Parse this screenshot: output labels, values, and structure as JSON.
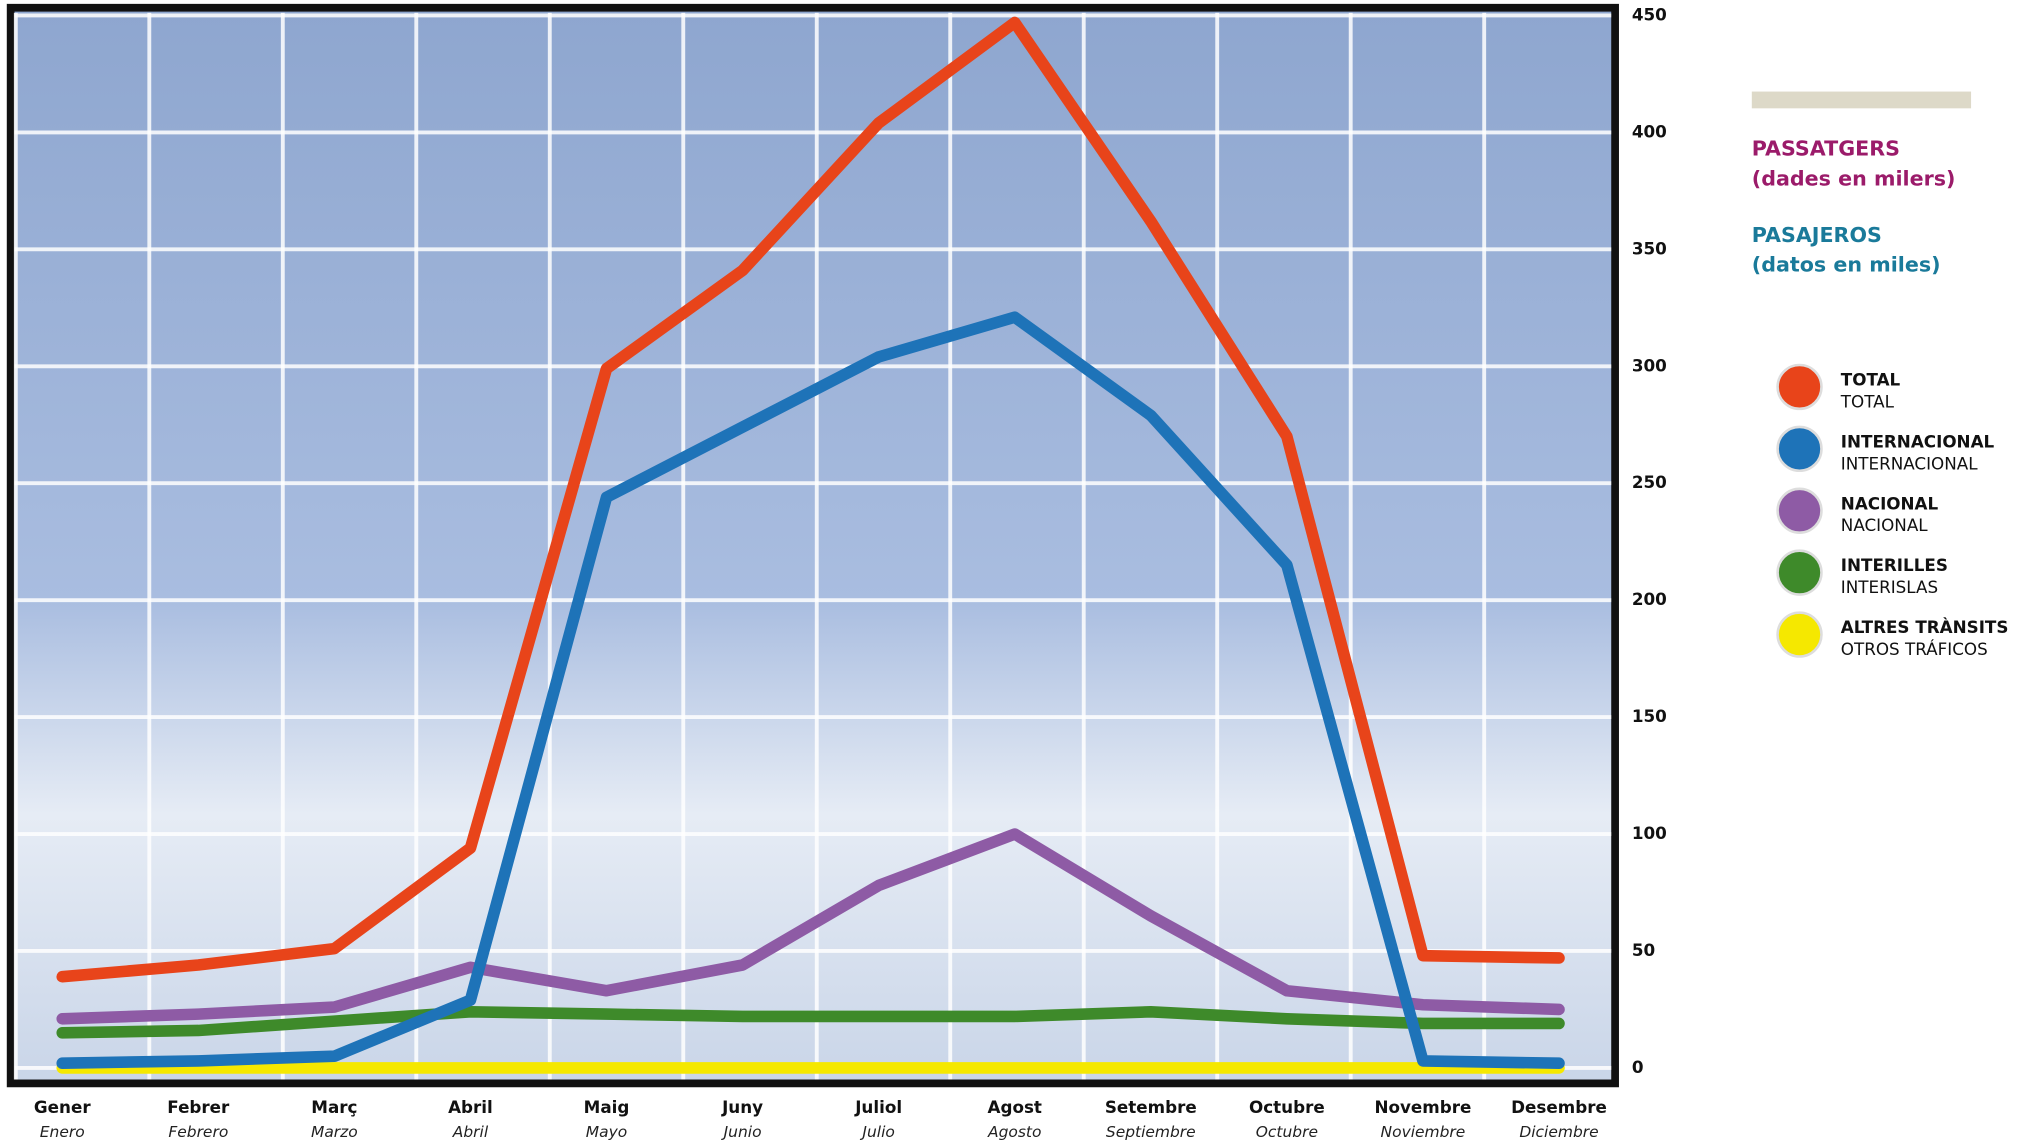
{
  "chart_data": {
    "type": "line",
    "headings": [
      {
        "text": "PASSATGERS",
        "sub": "(dades en milers)",
        "color": "#9b1b6a"
      },
      {
        "text": "PASAJEROS",
        "sub": "(datos en miles)",
        "color": "#1a7a9a"
      }
    ],
    "categories": [
      "Gener",
      "Febrer",
      "Març",
      "Abril",
      "Maig",
      "Juny",
      "Juliol",
      "Agost",
      "Setembre",
      "Octubre",
      "Novembre",
      "Desembre"
    ],
    "category_subtitles": [
      "Enero",
      "Febrero",
      "Marzo",
      "Abril",
      "Mayo",
      "Junio",
      "Julio",
      "Agosto",
      "Septiembre",
      "Octubre",
      "Noviembre",
      "Diciembre"
    ],
    "series": [
      {
        "name": "TOTAL",
        "name_es": "TOTAL",
        "color": "#e8441a",
        "values": [
          39,
          44,
          51,
          94,
          299,
          341,
          404,
          447,
          362,
          270,
          48,
          47
        ]
      },
      {
        "name": "INTERNACIONAL",
        "name_es": "INTERNACIONAL",
        "color": "#1e73b8",
        "values": [
          2,
          3,
          5,
          29,
          244,
          274,
          304,
          321,
          279,
          215,
          3,
          2
        ]
      },
      {
        "name": "NACIONAL",
        "name_es": "NACIONAL",
        "color": "#8e5ba5",
        "values": [
          21,
          23,
          26,
          43,
          33,
          44,
          78,
          100,
          65,
          33,
          27,
          25
        ]
      },
      {
        "name": "INTERILLES",
        "name_es": "INTERISLAS",
        "color": "#3e8a2a",
        "values": [
          15,
          16,
          20,
          24,
          23,
          22,
          22,
          22,
          24,
          21,
          19,
          19
        ]
      },
      {
        "name": "ALTRES TRÀNSITS",
        "name_es": "OTROS TRÁFICOS",
        "color": "#f5e800",
        "values": [
          0,
          0,
          0,
          0,
          0,
          0,
          0,
          0,
          0,
          0,
          0,
          0
        ]
      }
    ],
    "ylim": [
      0,
      450
    ],
    "yticks": [
      0,
      50,
      100,
      150,
      200,
      250,
      300,
      350,
      400,
      450
    ],
    "grid": true
  }
}
